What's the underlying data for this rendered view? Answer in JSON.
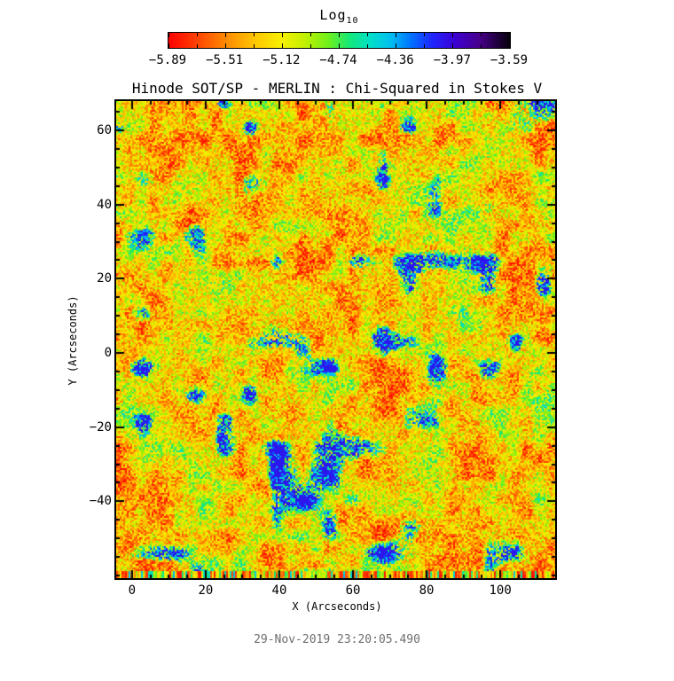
{
  "chart_data": {
    "type": "heatmap",
    "title": "Hinode SOT/SP - MERLIN : Chi-Squared in Stokes V",
    "xlabel": "X (Arcseconds)",
    "ylabel": "Y (Arcseconds)",
    "xlim": [
      -4.3,
      114.9
    ],
    "ylim": [
      -60.7,
      67.9
    ],
    "x_major_ticks": [
      0,
      20,
      40,
      60,
      80,
      100
    ],
    "x_tick_labels": [
      "0",
      "20",
      "40",
      "60",
      "80",
      "100"
    ],
    "y_major_ticks": [
      60,
      40,
      20,
      0,
      -20,
      -40
    ],
    "y_tick_labels": [
      "60",
      "40",
      "20",
      "0",
      "−20",
      "−40"
    ],
    "minor_tick_interval": 5,
    "grid": false,
    "legend_position": "none",
    "colorbar": {
      "orientation": "horizontal",
      "label": "Log",
      "label_subscript": "10",
      "tick_values": [
        -5.89,
        -5.51,
        -5.12,
        -4.74,
        -4.36,
        -3.97,
        -3.59
      ],
      "tick_labels": [
        "−5.89",
        "−5.51",
        "−5.12",
        "−4.74",
        "−4.36",
        "−3.97",
        "−3.59"
      ],
      "palette": [
        {
          "t": 0.0,
          "c": "#ff0000"
        },
        {
          "t": 0.08,
          "c": "#ff4000"
        },
        {
          "t": 0.17,
          "c": "#ff8c00"
        },
        {
          "t": 0.25,
          "c": "#ffc400"
        },
        {
          "t": 0.33,
          "c": "#f8f000"
        },
        {
          "t": 0.4,
          "c": "#c0f000"
        },
        {
          "t": 0.47,
          "c": "#6cf01e"
        },
        {
          "t": 0.53,
          "c": "#14e878"
        },
        {
          "t": 0.59,
          "c": "#00e0c8"
        },
        {
          "t": 0.65,
          "c": "#00c0f0"
        },
        {
          "t": 0.71,
          "c": "#0072ff"
        },
        {
          "t": 0.77,
          "c": "#1e28ff"
        },
        {
          "t": 0.84,
          "c": "#3c00d2"
        },
        {
          "t": 0.91,
          "c": "#48008c"
        },
        {
          "t": 1.0,
          "c": "#050008"
        }
      ],
      "field_character": "noisy chi-squared field: dominant yellow with dense orange/red speckle, scattered green patches, sparse cyan-blue blobs, striped warm-colored bottom edge rows"
    }
  },
  "footer": {
    "timestamp": "29-Nov-2019 23:20:05.490"
  },
  "colors": {
    "background": "#ffffff",
    "axis": "#000000",
    "timestamp_text": "#6e6e6e"
  }
}
